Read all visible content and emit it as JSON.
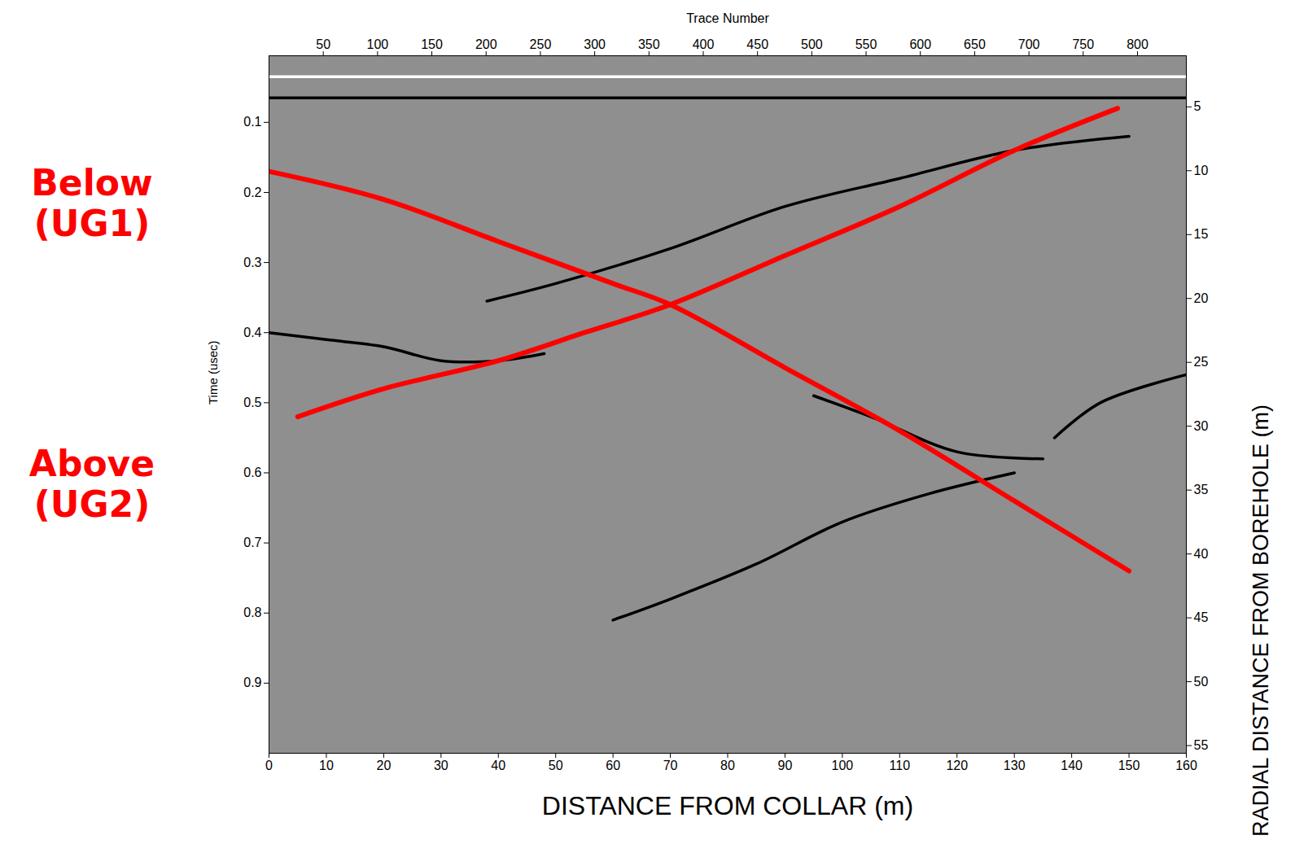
{
  "chart_data": {
    "type": "line",
    "xlabel": "DISTANCE FROM COLLAR (m)",
    "ylabel": "Time (usec)",
    "x2label": "Trace Number",
    "y2label": "RADIAL DISTANCE FROM BOREHOLE (m)",
    "xlim": [
      0,
      160
    ],
    "xticks": [
      0,
      10,
      20,
      30,
      40,
      50,
      60,
      70,
      80,
      90,
      100,
      110,
      120,
      130,
      140,
      150,
      160
    ],
    "x2lim": [
      0,
      845
    ],
    "x2ticks": [
      50,
      100,
      150,
      200,
      250,
      300,
      350,
      400,
      450,
      500,
      550,
      600,
      650,
      700,
      750,
      800
    ],
    "ylim": [
      0.005,
      1.0
    ],
    "yticks": [
      0.1,
      0.2,
      0.3,
      0.4,
      0.5,
      0.6,
      0.7,
      0.8,
      0.9
    ],
    "y2lim": [
      1.0,
      55.6
    ],
    "y2ticks": [
      5,
      10,
      15,
      20,
      25,
      30,
      35,
      40,
      45,
      50,
      55
    ],
    "series": [
      {
        "color": "#ffffff",
        "x": [
          0,
          40,
          80,
          120,
          160
        ],
        "values": [
          0.035,
          0.035,
          0.035,
          0.035,
          0.035
        ]
      },
      {
        "color": "#000000",
        "x": [
          0,
          40,
          80,
          120,
          160
        ],
        "values": [
          0.065,
          0.065,
          0.065,
          0.065,
          0.065
        ]
      },
      {
        "color": "#000000",
        "x": [
          38,
          50,
          70,
          90,
          110,
          130,
          150
        ],
        "values": [
          0.355,
          0.33,
          0.28,
          0.22,
          0.18,
          0.14,
          0.12
        ]
      },
      {
        "color": "#000000",
        "x": [
          0,
          10,
          20,
          30,
          40,
          48
        ],
        "values": [
          0.4,
          0.41,
          0.42,
          0.44,
          0.44,
          0.43
        ]
      },
      {
        "color": "#000000",
        "x": [
          60,
          70,
          85,
          100,
          115,
          130
        ],
        "values": [
          0.81,
          0.78,
          0.73,
          0.67,
          0.63,
          0.6
        ]
      },
      {
        "color": "#000000",
        "x": [
          95,
          105,
          120,
          135
        ],
        "values": [
          0.49,
          0.52,
          0.57,
          0.58
        ]
      },
      {
        "color": "#000000",
        "x": [
          137,
          145,
          160
        ],
        "values": [
          0.55,
          0.5,
          0.46
        ]
      },
      {
        "name": "Below (UG1)",
        "color": "#ff0000",
        "x": [
          0,
          20,
          40,
          60,
          70,
          90,
          110,
          130,
          150
        ],
        "values": [
          0.17,
          0.21,
          0.27,
          0.33,
          0.36,
          0.45,
          0.54,
          0.64,
          0.74
        ]
      },
      {
        "name": "Above (UG2)",
        "color": "#ff0000",
        "x": [
          5,
          20,
          40,
          55,
          70,
          90,
          110,
          130,
          148
        ],
        "values": [
          0.52,
          0.48,
          0.44,
          0.4,
          0.36,
          0.29,
          0.22,
          0.14,
          0.08
        ]
      }
    ]
  }
}
